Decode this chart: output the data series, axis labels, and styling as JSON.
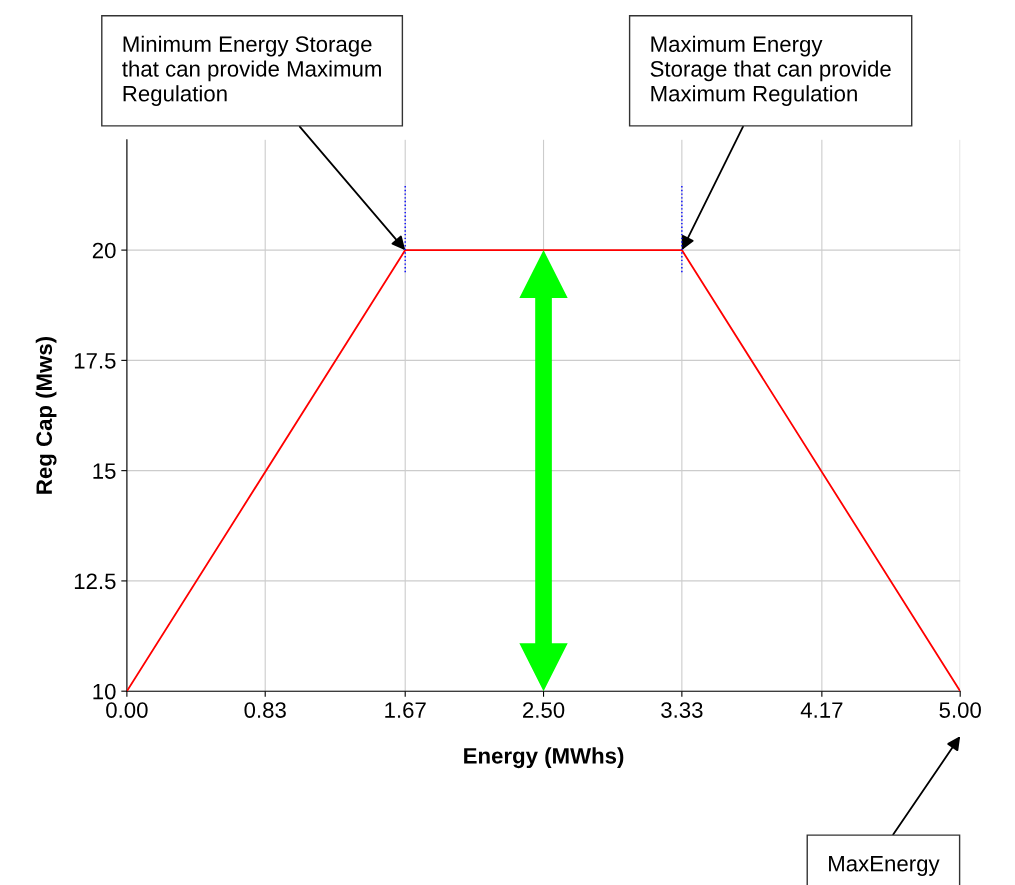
{
  "chart_data": {
    "type": "line",
    "xlabel": "Energy (MWhs)",
    "ylabel": "Reg Cap (Mws)",
    "x": [
      0.0,
      1.67,
      3.33,
      5.0
    ],
    "series": [
      {
        "color": "#ff0000",
        "values": [
          10,
          20,
          20,
          10
        ]
      }
    ],
    "xlim": [
      0,
      5
    ],
    "ylim": [
      10,
      22.5
    ],
    "xticks": [
      {
        "value": 0,
        "label": "0.00"
      },
      {
        "value": 0.83,
        "label": "0.83"
      },
      {
        "value": 1.67,
        "label": "1.67"
      },
      {
        "value": 2.5,
        "label": "2.50"
      },
      {
        "value": 3.33,
        "label": "3.33"
      },
      {
        "value": 4.17,
        "label": "4.17"
      },
      {
        "value": 5,
        "label": "5.00"
      }
    ],
    "yticks": [
      10,
      12.5,
      15,
      17.5,
      20
    ],
    "grid": true,
    "marker": "none",
    "line_style": "solid",
    "ref_lines": [
      {
        "axis": "x",
        "value": 1.67,
        "color": "#0000ff",
        "line_style": "dotted"
      },
      {
        "axis": "x",
        "value": 3.33,
        "color": "#0000ff",
        "line_style": "dotted"
      }
    ],
    "annotations": [
      {
        "text": "Minimum Energy Storage\nthat can provide Maximum\nRegulation",
        "x": 1.67,
        "y": 20
      },
      {
        "text": "Maximum Energy\nStorage that can provide\nMaximum Regulation",
        "x": 3.33,
        "y": 20
      },
      "MaxEnergy"
    ]
  }
}
